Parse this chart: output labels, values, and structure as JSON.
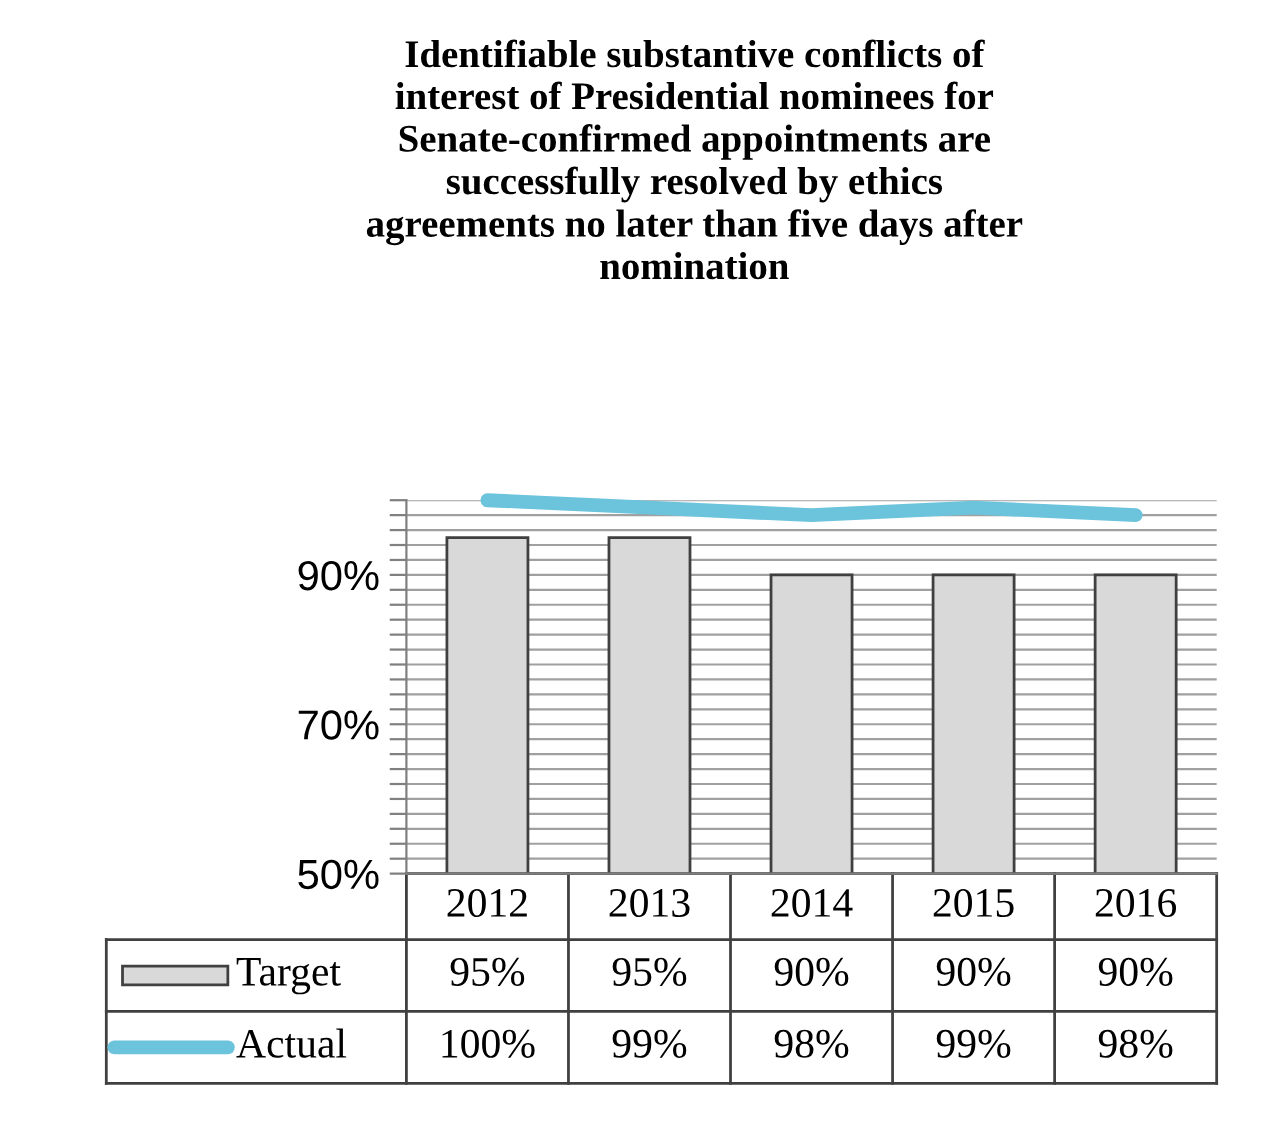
{
  "chart_data": {
    "type": "bar",
    "title": "Identifiable substantive conflicts of\ninterest of Presidential nominees for\nSenate-confirmed appointments are\nsuccessfully resolved by ethics\nagreements no later than five days after\nnomination",
    "categories": [
      "2012",
      "2013",
      "2014",
      "2015",
      "2016"
    ],
    "series": [
      {
        "name": "Target",
        "color": "#d9d9d9",
        "values": [
          95,
          95,
          90,
          90,
          90
        ],
        "value_labels": [
          "95%",
          "95%",
          "90%",
          "90%",
          "90%"
        ]
      },
      {
        "name": "Actual",
        "type": "line",
        "color": "#6cc3dc",
        "values": [
          100,
          99,
          98,
          99,
          98
        ],
        "value_labels": [
          "100%",
          "99%",
          "98%",
          "99%",
          "98%"
        ]
      }
    ],
    "ylim": [
      50,
      100
    ],
    "yticks": [
      {
        "value": 50,
        "label": "50%"
      },
      {
        "value": 52,
        "label": null
      },
      {
        "value": 54,
        "label": null
      },
      {
        "value": 56,
        "label": null
      },
      {
        "value": 58,
        "label": null
      },
      {
        "value": 60,
        "label": null
      },
      {
        "value": 62,
        "label": null
      },
      {
        "value": 64,
        "label": null
      },
      {
        "value": 66,
        "label": null
      },
      {
        "value": 68,
        "label": null
      },
      {
        "value": 70,
        "label": "70%"
      },
      {
        "value": 72,
        "label": null
      },
      {
        "value": 74,
        "label": null
      },
      {
        "value": 76,
        "label": null
      },
      {
        "value": 78,
        "label": null
      },
      {
        "value": 80,
        "label": null
      },
      {
        "value": 82,
        "label": null
      },
      {
        "value": 84,
        "label": null
      },
      {
        "value": 86,
        "label": null
      },
      {
        "value": 88,
        "label": null
      },
      {
        "value": 90,
        "label": "90%"
      },
      {
        "value": 92,
        "label": null
      },
      {
        "value": 94,
        "label": null
      },
      {
        "value": 96,
        "label": null
      },
      {
        "value": 98,
        "label": null
      },
      {
        "value": 100,
        "label": null
      }
    ],
    "grid": "y",
    "legend": "bottom",
    "marker": "none"
  }
}
